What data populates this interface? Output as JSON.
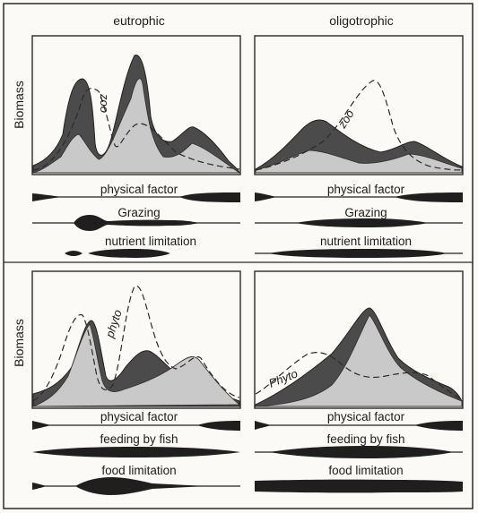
{
  "columns": [
    "eutrophic",
    "oligotrophic"
  ],
  "y_axis_label": "Biomass",
  "top_row": {
    "curve_labels": {
      "eutrophic": "zoo",
      "oligotrophic": "zoo"
    },
    "bars": [
      "physical factor",
      "Grazing",
      "nutrient limitation"
    ]
  },
  "bottom_row": {
    "curve_labels": {
      "eutrophic": "phyto",
      "oligotrophic": "Phyto"
    },
    "bars": [
      "physical factor",
      "feeding by fish",
      "food limitation"
    ]
  }
}
